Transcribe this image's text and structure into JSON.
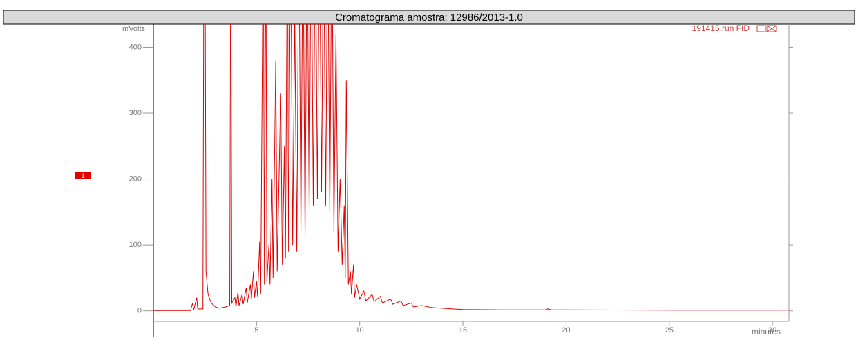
{
  "chart_data": {
    "type": "line",
    "title": "Cromatograma amostra: 12986/2013-1.0",
    "annotation": "191415.run FID",
    "ylabel": "mVolts",
    "xlabel": "minutes",
    "xlim": [
      0,
      30.8
    ],
    "ylim": [
      -16,
      435
    ],
    "xticks": [
      5,
      10,
      15,
      20,
      25,
      30
    ],
    "yticks": [
      0,
      100,
      200,
      300,
      400
    ],
    "series": [
      {
        "name": "1",
        "color": "#e00000",
        "x": [
          0,
          1.8,
          1.9,
          1.95,
          2.1,
          2.15,
          2.4,
          2.45,
          2.5,
          2.55,
          2.65,
          2.8,
          3.0,
          3.2,
          3.5,
          3.7,
          3.75,
          3.8,
          3.95,
          4.0,
          4.1,
          4.15,
          4.3,
          4.35,
          4.5,
          4.55,
          4.7,
          4.75,
          4.85,
          4.9,
          5.0,
          5.05,
          5.15,
          5.2,
          5.33,
          5.38,
          5.45,
          5.5,
          5.6,
          5.65,
          5.75,
          5.8,
          5.93,
          6.0,
          6.1,
          6.17,
          6.25,
          6.35,
          6.4,
          6.5,
          6.55,
          6.65,
          6.75,
          6.85,
          6.95,
          7.05,
          7.15,
          7.25,
          7.35,
          7.45,
          7.55,
          7.65,
          7.75,
          7.85,
          7.95,
          8.05,
          8.15,
          8.25,
          8.35,
          8.45,
          8.55,
          8.65,
          8.75,
          8.85,
          8.95,
          9.05,
          9.15,
          9.25,
          9.3,
          9.35,
          9.45,
          9.55,
          9.6,
          9.7,
          9.75,
          9.85,
          10.0,
          10.2,
          10.3,
          10.6,
          10.7,
          11.0,
          11.1,
          11.5,
          11.6,
          12.0,
          12.1,
          12.5,
          12.6,
          13.0,
          13.5,
          14.0,
          14.5,
          15.0,
          17.0,
          19.0,
          19.1,
          19.3,
          20,
          25,
          30.8
        ],
        "values": [
          0.5,
          0.5,
          12,
          1,
          20,
          3,
          3,
          600,
          600,
          60,
          25,
          12,
          6,
          4,
          6,
          8,
          600,
          12,
          20,
          6,
          28,
          8,
          25,
          10,
          35,
          12,
          40,
          18,
          60,
          20,
          45,
          22,
          105,
          25,
          600,
          40,
          600,
          45,
          100,
          40,
          200,
          50,
          380,
          60,
          220,
          330,
          70,
          250,
          80,
          600,
          90,
          600,
          100,
          450,
          90,
          600,
          120,
          600,
          110,
          600,
          150,
          600,
          160,
          600,
          170,
          600,
          180,
          600,
          160,
          600,
          150,
          600,
          120,
          420,
          90,
          200,
          70,
          160,
          50,
          350,
          40,
          60,
          25,
          70,
          20,
          40,
          18,
          30,
          15,
          25,
          14,
          22,
          12,
          18,
          10,
          15,
          8,
          12,
          6,
          8,
          5,
          4,
          3,
          2,
          1.5,
          1.5,
          3,
          1.5,
          1.5,
          1,
          1
        ]
      }
    ]
  }
}
